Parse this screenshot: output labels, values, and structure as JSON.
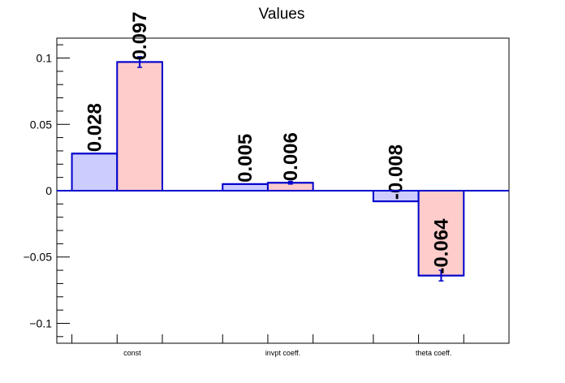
{
  "chart_data": {
    "type": "bar",
    "title": "Values",
    "xlabel": "",
    "ylabel": "",
    "categories": [
      "const",
      "invpt coeff.",
      "theta coeff."
    ],
    "ylim": [
      -0.115,
      0.115
    ],
    "yticks": [
      -0.1,
      -0.05,
      0,
      0.05,
      0.1
    ],
    "ytick_labels": [
      "−0.1",
      "−0.05",
      "0",
      "0.05",
      "0.1"
    ],
    "grid": false,
    "legend": "none",
    "series": [
      {
        "values": [
          0.028,
          0.005,
          -0.008
        ],
        "labels": [
          "0.028",
          "0.005",
          "-0.008"
        ],
        "errors": [
          0,
          0,
          0
        ],
        "fill": "#ccccff",
        "stroke": "#0000cc"
      },
      {
        "values": [
          0.097,
          0.006,
          -0.064
        ],
        "labels": [
          "0.097",
          "0.006",
          "-0.064"
        ],
        "errors": [
          0.004,
          0.001,
          0.004
        ],
        "fill": "#ffcccc",
        "stroke": "#0000cc"
      }
    ]
  }
}
